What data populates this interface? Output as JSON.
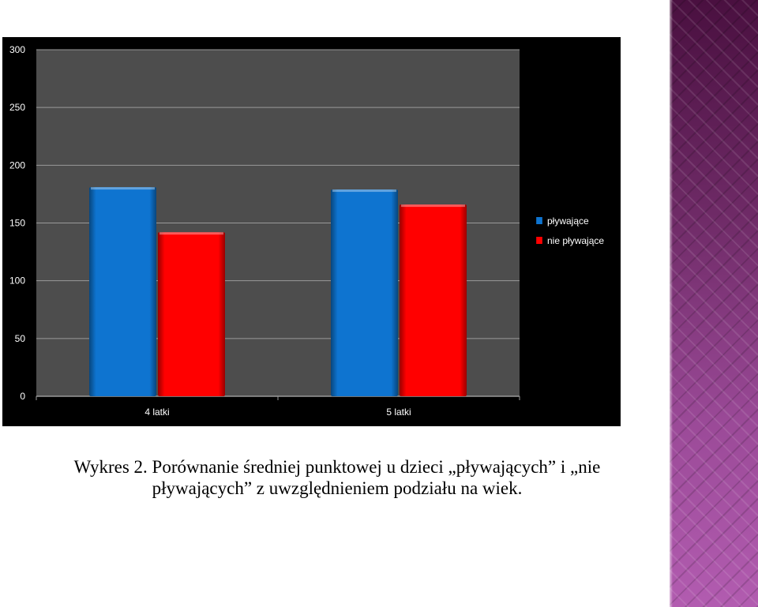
{
  "chart_data": {
    "type": "bar",
    "categories": [
      "4 latki",
      "5 latki"
    ],
    "series": [
      {
        "name": "pływające",
        "values": [
          181,
          179
        ],
        "color": "#0e74d0"
      },
      {
        "name": "nie pływające",
        "values": [
          142,
          166
        ],
        "color": "#ff0000"
      }
    ],
    "ylim": [
      0,
      300
    ],
    "yticks": [
      0,
      50,
      100,
      150,
      200,
      250,
      300
    ],
    "title": "",
    "xlabel": "",
    "ylabel": "",
    "grid": true,
    "legend_position": "right"
  },
  "caption": {
    "line1": "Wykres 2. Porównanie średniej punktowej u dzieci „pływających” i „nie",
    "line2": "pływających” z uwzględnieniem podziału na wiek."
  },
  "colors": {
    "chart_background": "#000000",
    "plot_area": "#4d4d4d",
    "gridline": "#9a9a9a",
    "label_text": "#ffffff"
  }
}
